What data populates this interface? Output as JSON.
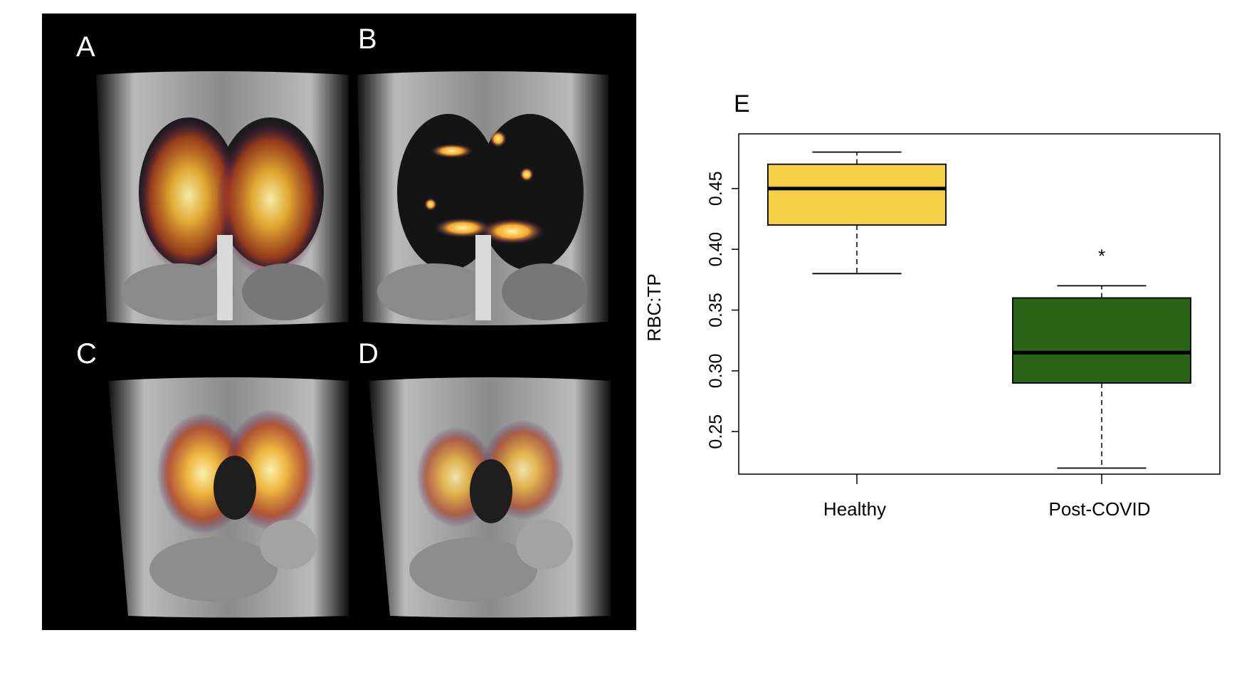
{
  "figure": {
    "panel_labels": [
      "A",
      "B",
      "C",
      "D"
    ],
    "chart_label": "E"
  },
  "colors": {
    "mri_background": "#000000",
    "ventilation_hot": "#f7b733",
    "healthy_box": "#f5cf45",
    "post_covid_box": "#2b6317"
  },
  "chart_data": {
    "type": "box",
    "title": "",
    "xlabel": "",
    "ylabel": "RBC:TP",
    "ylim": [
      0.215,
      0.495
    ],
    "yticks": [
      "0.25",
      "0.30",
      "0.35",
      "0.40",
      "0.45"
    ],
    "categories": [
      "Healthy",
      "Post-COVID"
    ],
    "boxes": [
      {
        "name": "Healthy",
        "min": 0.38,
        "q1": 0.42,
        "median": 0.45,
        "q3": 0.47,
        "max": 0.48,
        "color": "#f5cf45"
      },
      {
        "name": "Post-COVID",
        "min": 0.22,
        "q1": 0.29,
        "median": 0.315,
        "q3": 0.36,
        "max": 0.37,
        "color": "#2b6317"
      }
    ],
    "annotation": "*"
  }
}
